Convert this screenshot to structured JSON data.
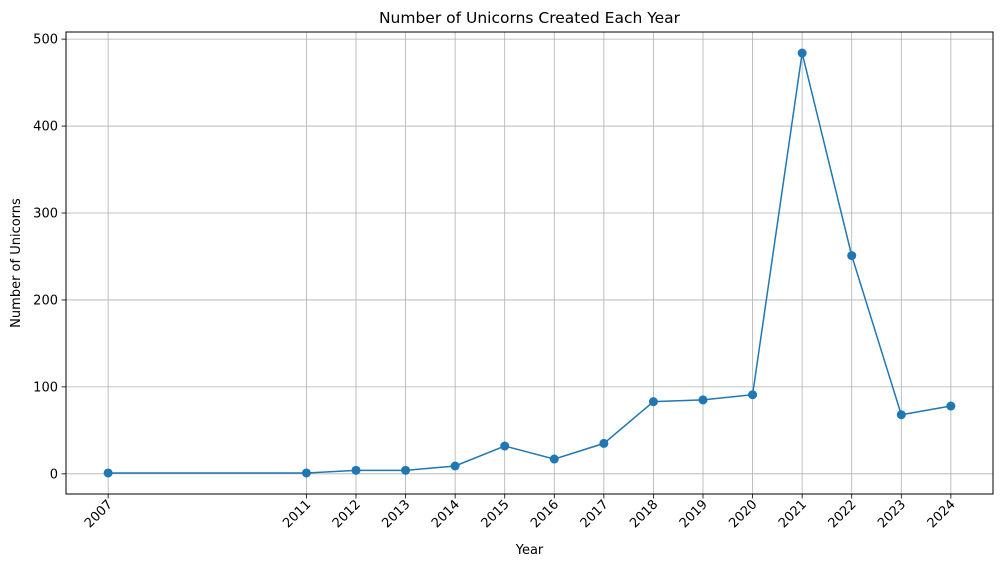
{
  "chart_data": {
    "type": "line",
    "title": "Number of Unicorns Created Each Year",
    "xlabel": "Year",
    "ylabel": "Number of Unicorns",
    "x": [
      2007,
      2011,
      2012,
      2013,
      2014,
      2015,
      2016,
      2017,
      2018,
      2019,
      2020,
      2021,
      2022,
      2023,
      2024
    ],
    "series": [
      {
        "values": [
          1,
          1,
          4,
          4,
          9,
          32,
          17,
          35,
          83,
          85,
          91,
          484,
          251,
          68,
          78
        ],
        "color": "#1f77b4",
        "marker": "circle"
      }
    ],
    "xticks": [
      "2007",
      "2011",
      "2012",
      "2013",
      "2014",
      "2015",
      "2016",
      "2017",
      "2018",
      "2019",
      "2020",
      "2021",
      "2022",
      "2023",
      "2024"
    ],
    "yticks": [
      "0",
      "100",
      "200",
      "300",
      "400",
      "500"
    ],
    "xlim": [
      2006.15,
      2024.85
    ],
    "ylim": [
      -23.2,
      508.2
    ],
    "grid": true,
    "xtick_rotation": 45
  }
}
